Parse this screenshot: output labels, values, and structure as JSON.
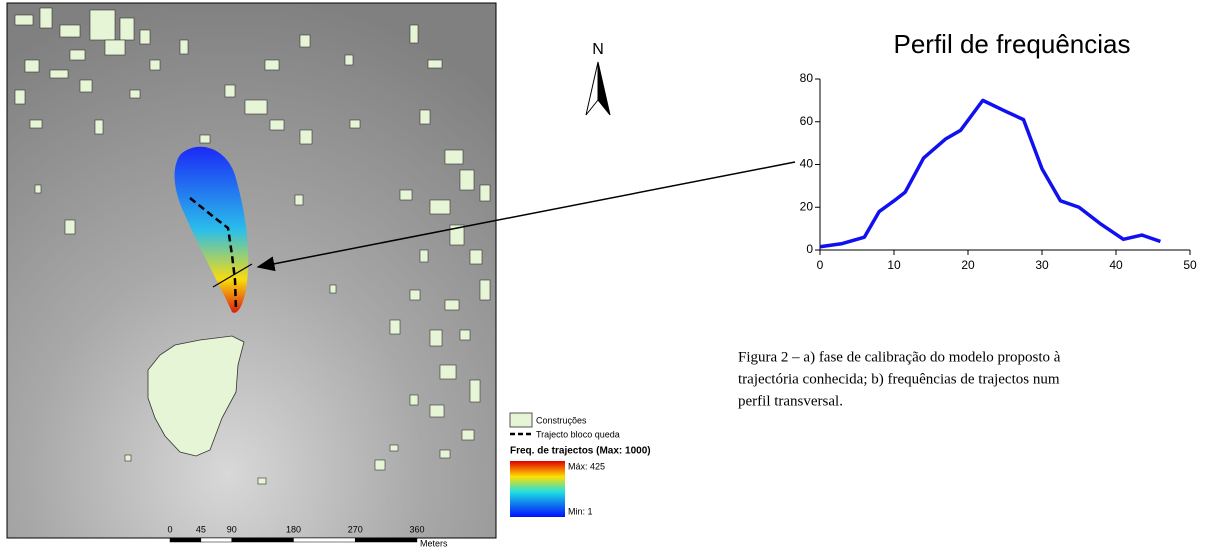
{
  "map": {
    "north": "N",
    "legend": {
      "buildings": "Construções",
      "path": "Trajecto bloco queda",
      "ramp_title": "Freq. de trajectos (Max: 1000)",
      "max_label": "Máx: 425",
      "min_label": "Min: 1"
    },
    "scale": {
      "ticks": [
        0,
        45,
        90,
        180,
        270,
        360
      ],
      "unit": "Meters"
    }
  },
  "chart_data": {
    "type": "line",
    "title": "Perfil de frequências",
    "x": [
      0,
      3,
      6,
      8,
      10,
      11.5,
      14,
      17,
      19,
      22,
      25,
      27.5,
      30,
      32.5,
      35,
      38,
      41,
      43.5,
      46
    ],
    "values": [
      1.5,
      3,
      6,
      18,
      23,
      27,
      43,
      52,
      56,
      70,
      65,
      61,
      38,
      23,
      20,
      12,
      5,
      7,
      4
    ],
    "color": "#1010f0",
    "xlim": [
      0,
      50
    ],
    "xticks": [
      0,
      10,
      20,
      30,
      40,
      50
    ],
    "ylim": [
      0,
      80
    ],
    "yticks": [
      0,
      20,
      40,
      60,
      80
    ]
  },
  "caption": [
    "Figura 2 – a) fase de calibração do modelo proposto à",
    "trajectória conhecida; b) frequências de trajectos num",
    "perfil transversal."
  ]
}
